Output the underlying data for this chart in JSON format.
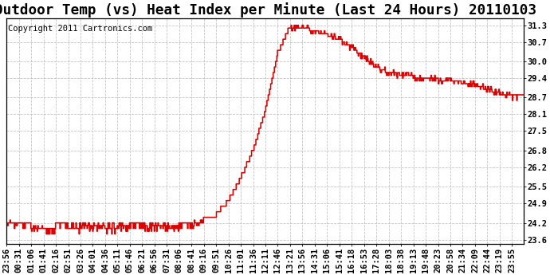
{
  "title": "Outdoor Temp (vs) Heat Index per Minute (Last 24 Hours) 20110103",
  "copyright_text": "Copyright 2011 Cartronics.com",
  "line_color": "#dd0000",
  "background_color": "#ffffff",
  "grid_color": "#bbbbbb",
  "yticks": [
    23.6,
    24.2,
    24.9,
    25.5,
    26.2,
    26.8,
    27.5,
    28.1,
    28.7,
    29.4,
    30.0,
    30.7,
    31.3
  ],
  "ylim": [
    23.45,
    31.55
  ],
  "xtick_labels": [
    "23:56",
    "00:31",
    "01:06",
    "01:41",
    "02:16",
    "02:51",
    "03:26",
    "04:01",
    "04:36",
    "05:11",
    "05:46",
    "06:21",
    "06:56",
    "07:31",
    "08:06",
    "08:41",
    "09:16",
    "09:51",
    "10:26",
    "11:01",
    "11:36",
    "12:11",
    "12:46",
    "13:21",
    "13:56",
    "14:31",
    "15:06",
    "15:41",
    "16:18",
    "16:53",
    "17:28",
    "18:03",
    "18:38",
    "19:13",
    "19:48",
    "20:23",
    "20:58",
    "21:34",
    "22:09",
    "22:44",
    "23:19",
    "23:55"
  ],
  "title_fontsize": 11,
  "copyright_fontsize": 6.5,
  "tick_fontsize": 6.5,
  "line_width": 1.0
}
